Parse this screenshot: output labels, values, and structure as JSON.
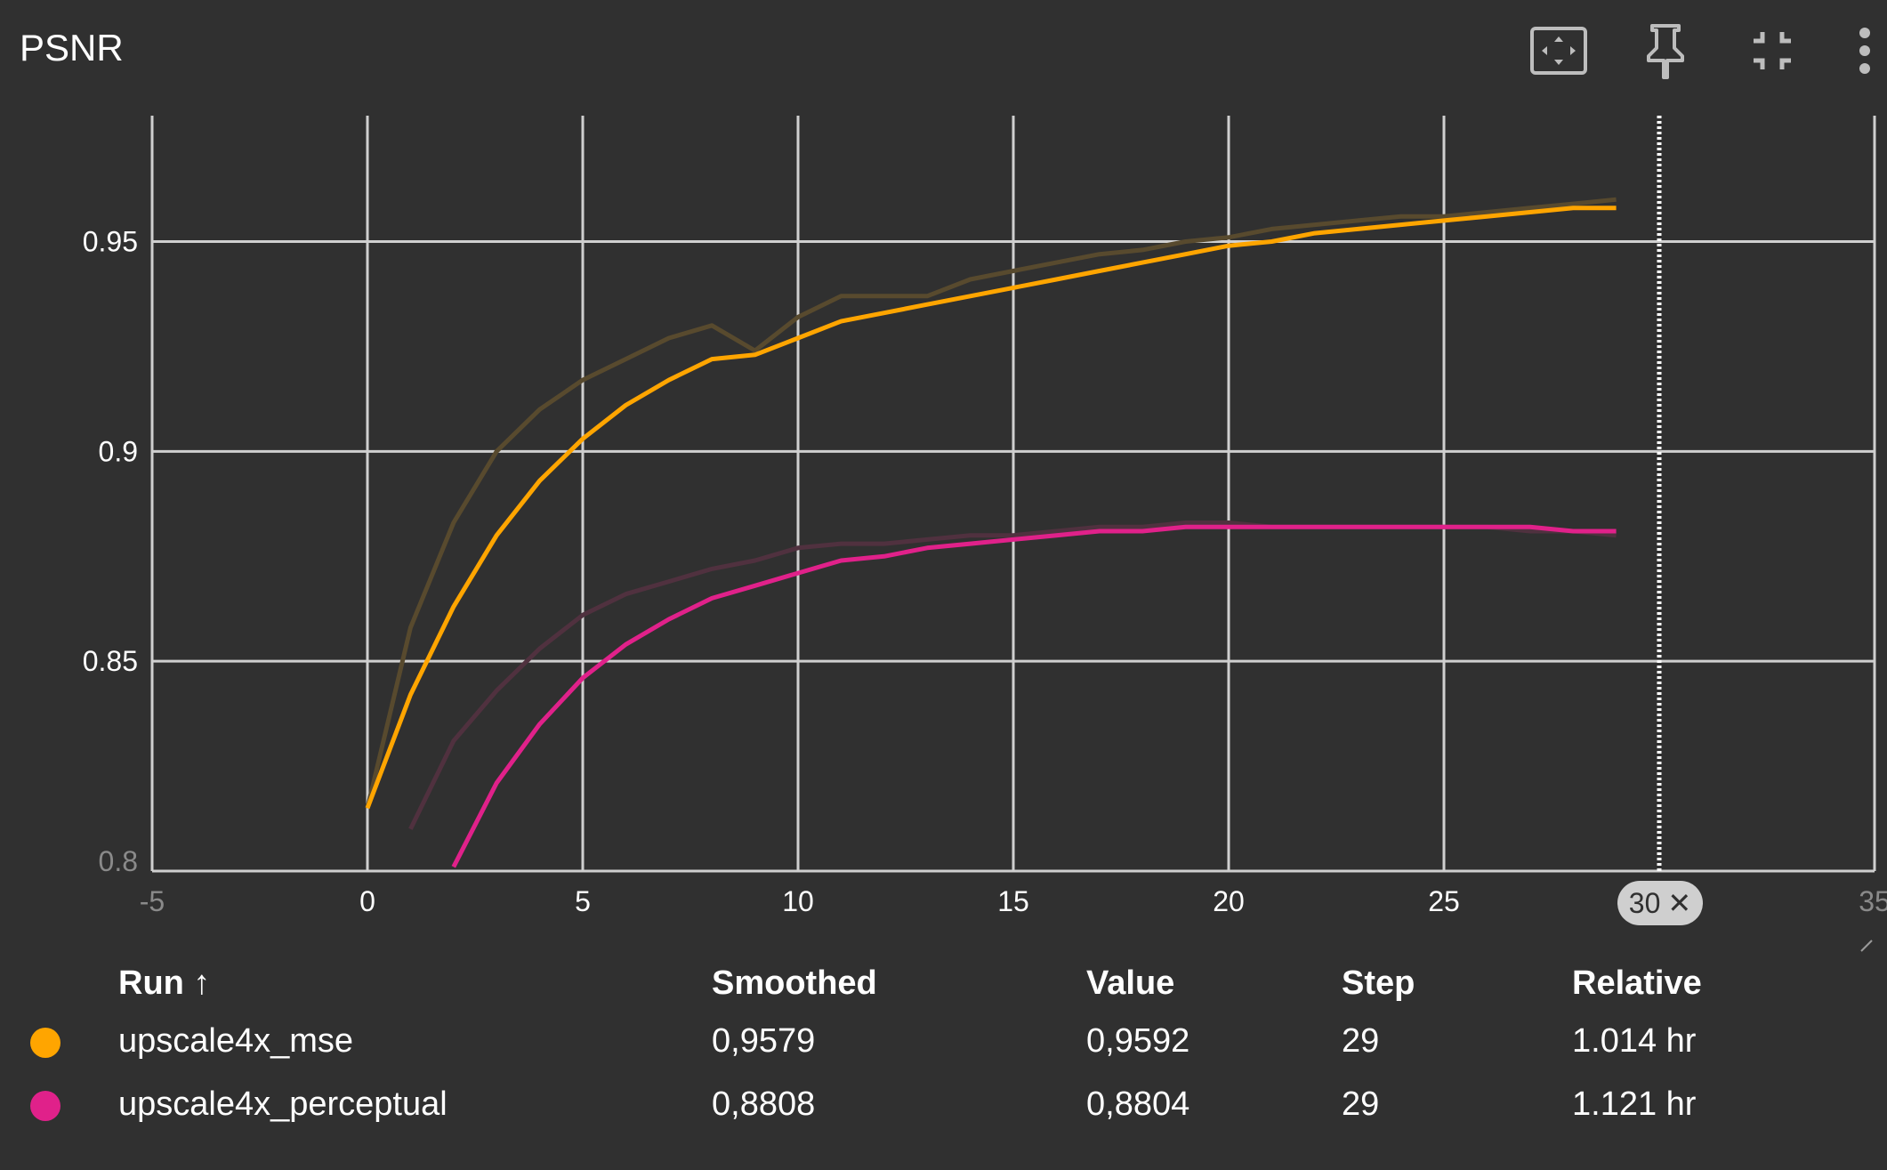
{
  "card": {
    "title": "PSNR"
  },
  "toolbar": {
    "icons": [
      "fit-domain-icon",
      "pin-icon",
      "collapse-icon",
      "more-vert-icon"
    ]
  },
  "colors": {
    "background": "#303030",
    "grid": "#cfcfcf",
    "mse": "#ffa500",
    "mse_raw": "#584a2e",
    "perceptual": "#e0218a",
    "perceptual_raw": "#50313f"
  },
  "chart_data": {
    "type": "line",
    "title": "PSNR",
    "xlim": [
      -5,
      35
    ],
    "ylim": [
      0.8,
      0.98
    ],
    "x_ticks": [
      "-5",
      "0",
      "5",
      "10",
      "15",
      "20",
      "25",
      "35"
    ],
    "y_ticks": [
      "0.8",
      "0.85",
      "0.9",
      "0.95"
    ],
    "grid": true,
    "hover_step": 30,
    "series": [
      {
        "name": "upscale4x_mse",
        "kind": "raw",
        "color": "#584a2e",
        "x": [
          0,
          1,
          2,
          3,
          4,
          5,
          6,
          7,
          8,
          9,
          10,
          11,
          12,
          13,
          14,
          15,
          16,
          17,
          18,
          19,
          20,
          21,
          22,
          23,
          24,
          25,
          26,
          27,
          28,
          29
        ],
        "y": [
          0.815,
          0.858,
          0.883,
          0.9,
          0.91,
          0.917,
          0.922,
          0.927,
          0.93,
          0.924,
          0.932,
          0.937,
          0.937,
          0.937,
          0.941,
          0.943,
          0.945,
          0.947,
          0.948,
          0.95,
          0.951,
          0.953,
          0.954,
          0.955,
          0.956,
          0.956,
          0.957,
          0.958,
          0.959,
          0.96
        ]
      },
      {
        "name": "upscale4x_mse",
        "kind": "smoothed",
        "color": "#ffa500",
        "x": [
          0,
          1,
          2,
          3,
          4,
          5,
          6,
          7,
          8,
          9,
          10,
          11,
          12,
          13,
          14,
          15,
          16,
          17,
          18,
          19,
          20,
          21,
          22,
          23,
          24,
          25,
          26,
          27,
          28,
          29
        ],
        "y": [
          0.815,
          0.842,
          0.863,
          0.88,
          0.893,
          0.903,
          0.911,
          0.917,
          0.922,
          0.923,
          0.927,
          0.931,
          0.933,
          0.935,
          0.937,
          0.939,
          0.941,
          0.943,
          0.945,
          0.947,
          0.949,
          0.95,
          0.952,
          0.953,
          0.954,
          0.955,
          0.956,
          0.957,
          0.958,
          0.958
        ]
      },
      {
        "name": "upscale4x_perceptual",
        "kind": "raw",
        "color": "#50313f",
        "x": [
          1,
          2,
          3,
          4,
          5,
          6,
          7,
          8,
          9,
          10,
          11,
          12,
          13,
          14,
          15,
          16,
          17,
          18,
          19,
          20,
          21,
          22,
          23,
          24,
          25,
          26,
          27,
          28,
          29
        ],
        "y": [
          0.81,
          0.831,
          0.843,
          0.853,
          0.861,
          0.866,
          0.869,
          0.872,
          0.874,
          0.877,
          0.878,
          0.878,
          0.879,
          0.88,
          0.88,
          0.881,
          0.882,
          0.882,
          0.883,
          0.883,
          0.882,
          0.882,
          0.882,
          0.882,
          0.882,
          0.882,
          0.881,
          0.881,
          0.88
        ]
      },
      {
        "name": "upscale4x_perceptual",
        "kind": "smoothed",
        "color": "#e0218a",
        "x": [
          2,
          3,
          4,
          5,
          6,
          7,
          8,
          9,
          10,
          11,
          12,
          13,
          14,
          15,
          16,
          17,
          18,
          19,
          20,
          21,
          22,
          23,
          24,
          25,
          26,
          27,
          28,
          29
        ],
        "y": [
          0.801,
          0.821,
          0.835,
          0.846,
          0.854,
          0.86,
          0.865,
          0.868,
          0.871,
          0.874,
          0.875,
          0.877,
          0.878,
          0.879,
          0.88,
          0.881,
          0.881,
          0.882,
          0.882,
          0.882,
          0.882,
          0.882,
          0.882,
          0.882,
          0.882,
          0.882,
          0.881,
          0.881
        ]
      }
    ]
  },
  "legend_table": {
    "headers": {
      "run": "Run ↑",
      "smoothed": "Smoothed",
      "value": "Value",
      "step": "Step",
      "relative": "Relative"
    },
    "rows": [
      {
        "color": "#ffa500",
        "run": "upscale4x_mse",
        "smoothed": "0,9579",
        "value": "0,9592",
        "step": "29",
        "relative": "1.014 hr"
      },
      {
        "color": "#e0218a",
        "run": "upscale4x_perceptual",
        "smoothed": "0,8808",
        "value": "0,8804",
        "step": "29",
        "relative": "1.121 hr"
      }
    ]
  }
}
